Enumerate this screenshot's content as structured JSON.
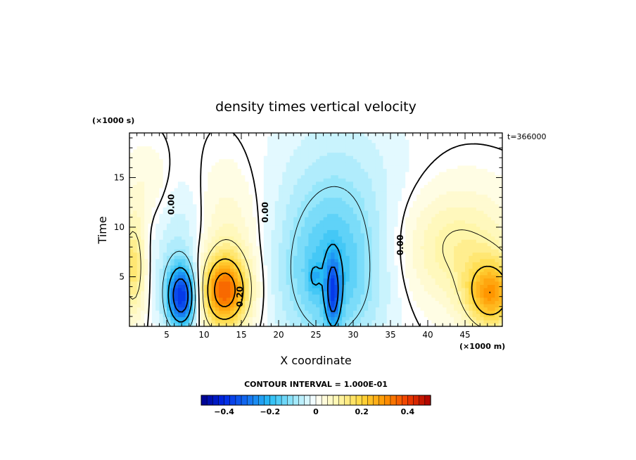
{
  "chart_data": {
    "type": "heatmap",
    "title": "density times vertical velocity",
    "xlabel": "X coordinate",
    "ylabel": "Time",
    "x_unit": "(×1000 m)",
    "y_unit": "(×1000 s)",
    "timestamp": "t=366000",
    "xlim": [
      0,
      50
    ],
    "ylim": [
      0,
      19.5
    ],
    "x_ticks": [
      5,
      10,
      15,
      20,
      25,
      30,
      35,
      40,
      45
    ],
    "y_ticks": [
      5,
      10,
      15
    ],
    "contour_interval_label": "CONTOUR INTERVAL = 1.000E-01",
    "contour_labels": [
      {
        "text": "0.00",
        "x": 6.0,
        "y": 12.3
      },
      {
        "text": "0.00",
        "x": 18.6,
        "y": 11.5
      },
      {
        "text": "0.00",
        "x": 36.7,
        "y": 8.2
      },
      {
        "text": "0.20",
        "x": 15.2,
        "y": 3.0
      }
    ],
    "features": [
      {
        "kind": "minimum",
        "x": 7.0,
        "y": 3.0,
        "value": -0.35
      },
      {
        "kind": "maximum",
        "x": 12.7,
        "y": 3.5,
        "value": 0.32
      },
      {
        "kind": "minimum",
        "x": 27.3,
        "y": 3.5,
        "value": -0.32
      },
      {
        "kind": "minimum",
        "x": 24.8,
        "y": 5.0,
        "value": -0.2
      },
      {
        "kind": "maximum",
        "x": 48.5,
        "y": 3.2,
        "value": 0.25
      },
      {
        "kind": "maximum",
        "x": 1.0,
        "y": 6.0,
        "value": 0.15
      }
    ],
    "colorbar": {
      "min": -0.5,
      "max": 0.5,
      "ticks": [
        -0.4,
        -0.2,
        0,
        0.2,
        0.4
      ],
      "tick_labels": [
        "−0.4",
        "−0.2",
        "0",
        "0.2",
        "0.4"
      ]
    },
    "grid": false
  }
}
